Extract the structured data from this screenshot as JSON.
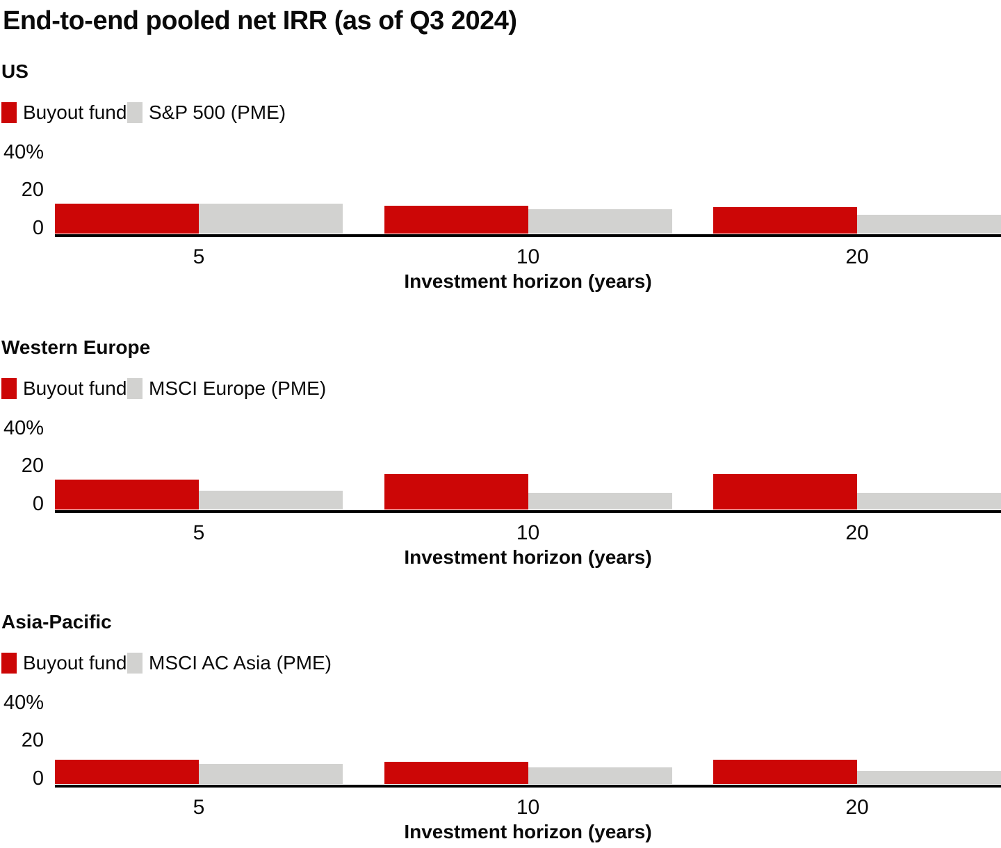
{
  "title": "End-to-end pooled net IRR (as of Q3 2024)",
  "colors": {
    "buyout": "#CC0606",
    "benchmark": "#D2D2D0",
    "axis": "#000000",
    "text": "#0A0A0A"
  },
  "y_axis": {
    "ticks": [
      {
        "pct": 40,
        "label": "40%"
      },
      {
        "pct": 20,
        "label": "20"
      },
      {
        "pct": 0,
        "label": "0"
      }
    ],
    "max": 40
  },
  "x_axis": {
    "label": "Investment horizon (years)",
    "ticks": [
      "5",
      "10",
      "20"
    ]
  },
  "chart_data": [
    {
      "type": "bar",
      "region": "US",
      "categories": [
        5,
        10,
        20
      ],
      "xlabel": "Investment horizon (years)",
      "ylim": [
        0,
        40
      ],
      "legend_position": "top-left",
      "grid": false,
      "series": [
        {
          "name": "Buyout funds",
          "values": [
            16,
            15,
            14
          ]
        },
        {
          "name": "S&P 500 (PME)",
          "values": [
            16,
            13,
            10
          ]
        }
      ]
    },
    {
      "type": "bar",
      "region": "Western Europe",
      "categories": [
        5,
        10,
        20
      ],
      "xlabel": "Investment horizon (years)",
      "ylim": [
        0,
        40
      ],
      "legend_position": "top-left",
      "grid": false,
      "series": [
        {
          "name": "Buyout funds",
          "values": [
            16,
            19,
            19
          ]
        },
        {
          "name": "MSCI Europe (PME)",
          "values": [
            10,
            9,
            9
          ]
        }
      ]
    },
    {
      "type": "bar",
      "region": "Asia-Pacific",
      "categories": [
        5,
        10,
        20
      ],
      "xlabel": "Investment horizon (years)",
      "ylim": [
        0,
        40
      ],
      "legend_position": "top-left",
      "grid": false,
      "series": [
        {
          "name": "Buyout funds",
          "values": [
            13,
            12,
            13
          ]
        },
        {
          "name": "MSCI AC Asia (PME)",
          "values": [
            11,
            9,
            7
          ]
        }
      ]
    }
  ]
}
